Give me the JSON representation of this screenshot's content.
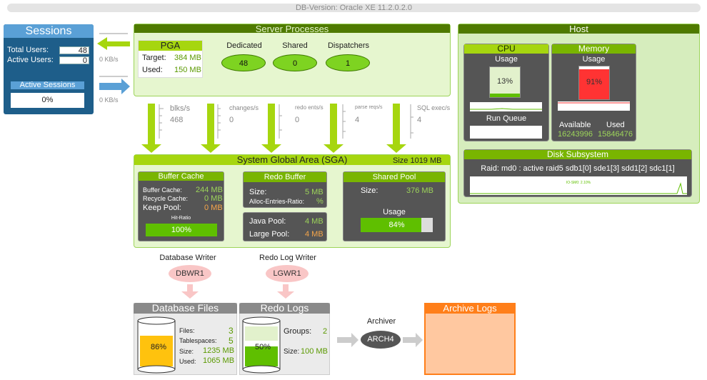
{
  "header": {
    "db_version": "DB-Version: Oracle XE 11.2.0.2.0"
  },
  "sessions": {
    "title": "Sessions",
    "total_users_label": "Total Users:",
    "total_users": "48",
    "active_users_label": "Active Users:",
    "active_users": "0",
    "active_sessions_label": "Active Sessions",
    "active_sessions": "0%",
    "rate_in": "0 KB/s",
    "rate_out": "0 KB/s"
  },
  "server_processes": {
    "title": "Server Processes",
    "pga": {
      "title": "PGA",
      "target_label": "Target:",
      "target": "384 MB",
      "used_label": "Used:",
      "used": "150 MB"
    },
    "dedicated_label": "Dedicated",
    "dedicated": "48",
    "shared_label": "Shared",
    "shared": "0",
    "dispatchers_label": "Dispatchers",
    "dispatchers": "1"
  },
  "flows": [
    {
      "label": "blks/s",
      "value": "468"
    },
    {
      "label": "changes/s",
      "value": "0"
    },
    {
      "label": "redo ents/s",
      "value": "0"
    },
    {
      "label": "parse reqs/s",
      "value": "4"
    },
    {
      "label": "SQL exec/s",
      "value": "4"
    }
  ],
  "sga": {
    "title": "System Global Area (SGA)",
    "size": "Size 1019 MB",
    "buffer_cache": {
      "title": "Buffer Cache",
      "buffer_label": "Buffer Cache:",
      "buffer": "244 MB",
      "recycle_label": "Recycle Cache:",
      "recycle": "0 MB",
      "keep_label": "Keep Pool:",
      "keep": "0 MB",
      "hit_ratio_label": "Hit-Ratio",
      "hit_ratio": "100%",
      "hit_ratio_value": 1.0
    },
    "redo_buffer": {
      "title": "Redo Buffer",
      "size_label": "Size:",
      "size": "5 MB",
      "alloc_label": "Alloc-Entries-Ratio:",
      "alloc": "%"
    },
    "pools": {
      "java_label": "Java Pool:",
      "java": "4 MB",
      "large_label": "Large Pool:",
      "large": "4 MB"
    },
    "shared_pool": {
      "title": "Shared Pool",
      "size_label": "Size:",
      "size": "376 MB",
      "usage_label": "Usage",
      "usage": "84%",
      "usage_value": 0.84
    }
  },
  "writers": {
    "dbwr_title": "Database Writer",
    "dbwr": "DBWR1",
    "lgwr_title": "Redo Log Writer",
    "lgwr": "LGWR1"
  },
  "database_files": {
    "title": "Database Files",
    "fill": "86%",
    "fill_value": 0.86,
    "files_label": "Files:",
    "files": "3",
    "tablespaces_label": "Tablespaces:",
    "tablespaces": "5",
    "size_label": "Size:",
    "size": "1235 MB",
    "used_label": "Used:",
    "used": "1065 MB"
  },
  "redo_logs": {
    "title": "Redo Logs",
    "fill": "50%",
    "fill_value": 0.5,
    "groups_label": "Groups:",
    "groups": "2",
    "size_label": "Size:",
    "size": "100 MB"
  },
  "archiver": {
    "title": "Archiver",
    "proc": "ARCH4"
  },
  "archive_logs": {
    "title": "Archive Logs"
  },
  "host": {
    "title": "Host",
    "cpu": {
      "title": "CPU",
      "usage_label": "Usage",
      "usage": "13%",
      "usage_value": 0.13,
      "run_queue_label": "Run Queue"
    },
    "memory": {
      "title": "Memory",
      "usage_label": "Usage",
      "usage": "91%",
      "usage_value": 0.91,
      "available_label": "Available",
      "available": "16243996",
      "used_label": "Used",
      "used": "15846476"
    },
    "disk": {
      "title": "Disk Subsystem",
      "raid": "Raid: md0 : active raid5 sdb1[0] sde1[3] sdd1[2] sdc1[1]",
      "io_label": "IO-SM0: 2.10%"
    }
  },
  "colors": {
    "accent_green": "#79b500",
    "sessions_blue": "#1e5e8a",
    "memory_red": "#ff3333",
    "archive_orange": "#ff7f1a"
  }
}
